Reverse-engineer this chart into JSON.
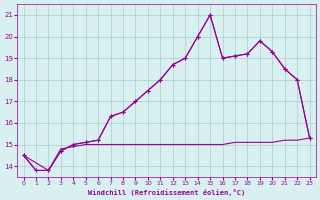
{
  "xlabel": "Windchill (Refroidissement éolien,°C)",
  "background_color": "#d8f0f0",
  "grid_color": "#aacccc",
  "line_color": "#990099",
  "x_ticks": [
    0,
    1,
    2,
    3,
    4,
    5,
    6,
    7,
    8,
    9,
    10,
    11,
    12,
    13,
    14,
    15,
    16,
    17,
    18,
    19,
    20,
    21,
    22,
    23
  ],
  "y_ticks": [
    14,
    15,
    16,
    17,
    18,
    19,
    20,
    21
  ],
  "ylim": [
    13.5,
    21.5
  ],
  "xlim": [
    -0.5,
    23.5
  ],
  "series1_x": [
    0,
    1,
    2,
    3,
    4,
    5,
    6,
    7,
    8,
    9,
    10,
    11,
    12,
    13,
    14,
    15,
    16,
    17,
    18,
    19,
    20,
    21,
    22,
    23
  ],
  "series1_y": [
    14.5,
    13.8,
    13.8,
    14.7,
    15.0,
    15.1,
    15.2,
    16.3,
    16.5,
    17.0,
    17.5,
    18.0,
    18.7,
    19.0,
    20.0,
    21.0,
    19.0,
    19.1,
    19.2,
    19.8,
    19.3,
    18.5,
    18.0,
    15.3
  ],
  "series2_x": [
    0,
    2,
    3,
    4,
    5,
    6,
    7,
    8,
    9,
    10,
    11,
    12,
    13,
    14,
    15,
    16,
    17,
    18,
    19,
    20,
    21,
    22,
    23
  ],
  "series2_y": [
    14.5,
    13.8,
    14.7,
    15.0,
    15.1,
    15.2,
    16.3,
    16.5,
    17.0,
    17.5,
    18.0,
    18.7,
    19.0,
    20.0,
    21.0,
    19.0,
    19.1,
    19.2,
    19.8,
    19.3,
    18.5,
    18.0,
    15.3
  ],
  "series3_x": [
    0,
    1,
    2,
    3,
    4,
    5,
    6,
    7,
    8,
    9,
    10,
    11,
    12,
    13,
    14,
    15,
    16,
    17,
    18,
    19,
    20,
    21,
    22,
    23
  ],
  "series3_y": [
    14.5,
    13.8,
    13.8,
    14.8,
    14.9,
    15.0,
    15.0,
    15.0,
    15.0,
    15.0,
    15.0,
    15.0,
    15.0,
    15.0,
    15.0,
    15.0,
    15.0,
    15.1,
    15.1,
    15.1,
    15.1,
    15.2,
    15.2,
    15.3
  ]
}
